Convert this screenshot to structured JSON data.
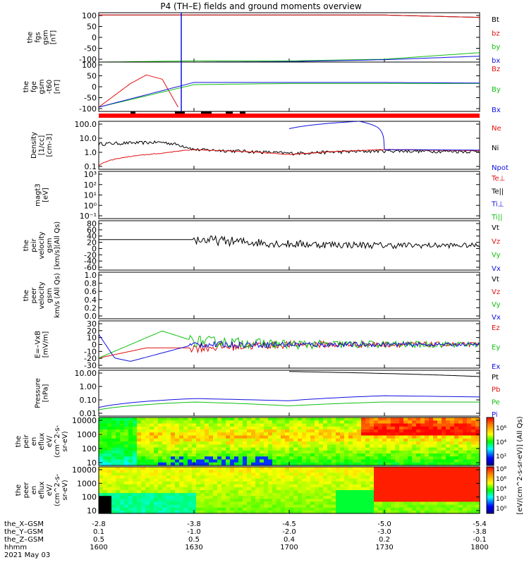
{
  "title": "P4 (TH–E) fields and ground moments overview",
  "colors": {
    "black": "#000000",
    "red": "#e01010",
    "green": "#10c010",
    "blue": "#1010e0",
    "bar": "#ff0000"
  },
  "panels": [
    {
      "id": "fgs",
      "ylabel": [
        "the",
        "fgs",
        "gsm",
        "[nT]"
      ],
      "ticks": [
        "100",
        "50",
        "0",
        "-50",
        "-100"
      ],
      "legend": [
        {
          "t": "Bt",
          "c": "black"
        },
        {
          "t": "bz",
          "c": "red"
        },
        {
          "t": "by",
          "c": "green"
        },
        {
          "t": "bx",
          "c": "blue"
        }
      ]
    },
    {
      "id": "fge",
      "ylabel": [
        "the",
        "fge",
        "gsm",
        "-t60",
        "[nT]"
      ],
      "ticks": [
        "100",
        "50",
        "0",
        "-50",
        "-100"
      ],
      "legend": [
        {
          "t": "Bz",
          "c": "red"
        },
        {
          "t": "By",
          "c": "green"
        },
        {
          "t": "Bx",
          "c": "blue"
        }
      ]
    },
    {
      "id": "density",
      "ylabel": [
        "Density",
        "[1/cc]",
        "[cm-3]"
      ],
      "ticks": [
        "100.0",
        "10.0",
        "1.0",
        "0.1"
      ],
      "legend": [
        {
          "t": "Ne",
          "c": "red"
        },
        {
          "t": "Ni",
          "c": "black"
        },
        {
          "t": "Npot",
          "c": "blue"
        }
      ]
    },
    {
      "id": "temp",
      "ylabel": [
        "magt3",
        "[eV]"
      ],
      "ticks": [
        "10³",
        "10²",
        "10¹",
        "10⁰",
        "10⁻¹"
      ],
      "legend": [
        {
          "t": "Te⊥",
          "c": "red"
        },
        {
          "t": "Te||",
          "c": "black"
        },
        {
          "t": "Ti⊥",
          "c": "blue"
        },
        {
          "t": "Ti||",
          "c": "green"
        }
      ]
    },
    {
      "id": "peirvel",
      "ylabel": [
        "the",
        "peir",
        "velocity",
        "gsm",
        "[km/s](All Qs)"
      ],
      "ticks": [
        "80",
        "60",
        "40",
        "20",
        "0",
        "-20",
        "-40",
        "-60"
      ],
      "legend": [
        {
          "t": "Vt",
          "c": "black"
        },
        {
          "t": "Vz",
          "c": "red"
        },
        {
          "t": "Vy",
          "c": "green"
        },
        {
          "t": "Vx",
          "c": "blue"
        }
      ]
    },
    {
      "id": "peervel",
      "ylabel": [
        "the",
        "peer",
        "velocity",
        "gsm",
        "km/s (All Qs)"
      ],
      "ticks": [
        "1.0",
        "0.8",
        "0.6",
        "0.4",
        "0.2",
        "0.0"
      ],
      "legend": [
        {
          "t": "Vt",
          "c": "black"
        },
        {
          "t": "Vz",
          "c": "red"
        },
        {
          "t": "Vy",
          "c": "green"
        },
        {
          "t": "Vx",
          "c": "blue"
        }
      ]
    },
    {
      "id": "efield",
      "ylabel": [
        "E=–VxB",
        "[mV/m]"
      ],
      "ticks": [
        "30",
        "20",
        "10",
        "0",
        "-10",
        "-20",
        "-30"
      ],
      "legend": [
        {
          "t": "Ez",
          "c": "red"
        },
        {
          "t": "Ey",
          "c": "green"
        },
        {
          "t": "Ex",
          "c": "blue"
        }
      ]
    },
    {
      "id": "pressure",
      "ylabel": [
        "Pressure",
        "[nPa]"
      ],
      "ticks": [
        "10.00",
        "1.00",
        "0.10",
        "0.01"
      ],
      "legend": [
        {
          "t": "Pt",
          "c": "black"
        },
        {
          "t": "Pb",
          "c": "red"
        },
        {
          "t": "Pe",
          "c": "green"
        },
        {
          "t": "Pi",
          "c": "blue"
        }
      ]
    },
    {
      "id": "peiren",
      "ylabel": [
        "the",
        "peir",
        "en",
        "eflux",
        "eV/",
        "(cm^2-s-",
        "sr-eV)"
      ],
      "ticks": [
        "10000",
        "1000",
        "100",
        "10"
      ],
      "legend": []
    },
    {
      "id": "peeren",
      "ylabel": [
        "the",
        "peer",
        "en",
        "eflux",
        "eV/",
        "(cm^2-s-",
        "sr-eV)"
      ],
      "ticks": [
        "10000",
        "1000",
        "100",
        "10"
      ],
      "legend": []
    }
  ],
  "colorbar": {
    "label": "[eV/(cm^2-s-sr-eV)] (All Qs)",
    "ticks1": [
      "10⁶",
      "10⁴",
      "10²"
    ],
    "ticks2": [
      "10⁸",
      "10⁶",
      "10⁴",
      "10²",
      "10⁰"
    ]
  },
  "xaxis": {
    "row_labels": [
      "the_X–GSM",
      "the_Y–GSM",
      "the_Z–GSM",
      "hhmm",
      "2021 May 03"
    ],
    "columns": [
      [
        "-2.8",
        "0.1",
        "0.5",
        "1600"
      ],
      [
        "-3.8",
        "-1.0",
        "0.5",
        "1630"
      ],
      [
        "-4.5",
        "-2.0",
        "0.4",
        "1700"
      ],
      [
        "-5.0",
        "-3.0",
        "0.2",
        "1730"
      ],
      [
        "-5.4",
        "-3.8",
        "-0.1",
        "1800"
      ]
    ]
  },
  "chart_data": {
    "type": "line",
    "title": "P4 (TH–E) fields and ground moments overview",
    "x_time_hhmm": [
      "1600",
      "1630",
      "1700",
      "1730",
      "1800"
    ],
    "date": "2021 May 03",
    "series": [
      {
        "name": "Bt",
        "panel": "fgs",
        "x": [
          "1600",
          "1730",
          "1800"
        ],
        "values": [
          100,
          100,
          90
        ]
      },
      {
        "name": "bz",
        "panel": "fgs",
        "x": [
          "1600",
          "1730",
          "1800"
        ],
        "values": [
          100,
          100,
          90
        ]
      },
      {
        "name": "by",
        "panel": "fgs",
        "x": [
          "1600",
          "1630",
          "1700",
          "1730",
          "1800"
        ],
        "values": [
          -100,
          -95,
          -95,
          -88,
          -60
        ]
      },
      {
        "name": "bx",
        "panel": "fgs",
        "x": [
          "1600",
          "1630",
          "1700",
          "1730",
          "1800"
        ],
        "values": [
          -100,
          -100,
          -98,
          -90,
          -75
        ]
      },
      {
        "name": "Bz",
        "panel": "fge",
        "x": [
          "1600",
          "1610",
          "1615",
          "1620",
          "1625"
        ],
        "values": [
          -100,
          10,
          50,
          30,
          -100
        ]
      },
      {
        "name": "By",
        "panel": "fge",
        "x": [
          "1600",
          "1630",
          "1700",
          "1730",
          "1800"
        ],
        "values": [
          -100,
          5,
          10,
          10,
          10
        ]
      },
      {
        "name": "Bx",
        "panel": "fge",
        "x": [
          "1600",
          "1630",
          "1700",
          "1730",
          "1800"
        ],
        "values": [
          -100,
          15,
          15,
          15,
          12
        ]
      },
      {
        "name": "Ni",
        "panel": "density",
        "x": [
          "1600",
          "1620",
          "1630",
          "1700",
          "1730",
          "1800"
        ],
        "values": [
          3,
          4,
          1,
          0.5,
          0.8,
          0.7
        ]
      },
      {
        "name": "Ne",
        "panel": "density",
        "x": [
          "1600",
          "1620",
          "1630",
          "1700",
          "1730",
          "1800"
        ],
        "values": [
          0.05,
          0.5,
          1,
          0.4,
          1,
          0.8
        ]
      },
      {
        "name": "Npot",
        "panel": "density",
        "x": [
          "1700",
          "1722",
          "1728",
          "1730",
          "1800"
        ],
        "values": [
          50,
          200,
          60,
          1,
          0.9
        ]
      },
      {
        "name": "Vt",
        "panel": "peirvel",
        "x": [
          "1600",
          "1630",
          "1700",
          "1730",
          "1800"
        ],
        "values": [
          25,
          25,
          10,
          5,
          5
        ]
      },
      {
        "name": "Ez",
        "panel": "efield",
        "x": [
          "1600",
          "1615",
          "1630",
          "1700",
          "1800"
        ],
        "values": [
          -20,
          -5,
          -5,
          0,
          0
        ]
      },
      {
        "name": "Ey",
        "panel": "efield",
        "x": [
          "1600",
          "1620",
          "1630",
          "1700",
          "1800"
        ],
        "values": [
          -20,
          20,
          5,
          0,
          0
        ]
      },
      {
        "name": "Ex",
        "panel": "efield",
        "x": [
          "1600",
          "1605",
          "1610",
          "1630",
          "1800"
        ],
        "values": [
          15,
          -20,
          -25,
          0,
          0
        ]
      },
      {
        "name": "Pt",
        "panel": "pressure",
        "x": [
          "1700",
          "1800"
        ],
        "values": [
          20,
          8
        ]
      },
      {
        "name": "Pi",
        "panel": "pressure",
        "x": [
          "1600",
          "1630",
          "1700",
          "1730",
          "1800"
        ],
        "values": [
          0.03,
          0.15,
          0.1,
          0.25,
          0.2
        ]
      },
      {
        "name": "Pe",
        "panel": "pressure",
        "x": [
          "1600",
          "1630",
          "1700",
          "1730",
          "1800"
        ],
        "values": [
          0.02,
          0.08,
          0.04,
          0.08,
          0.08
        ]
      }
    ]
  }
}
